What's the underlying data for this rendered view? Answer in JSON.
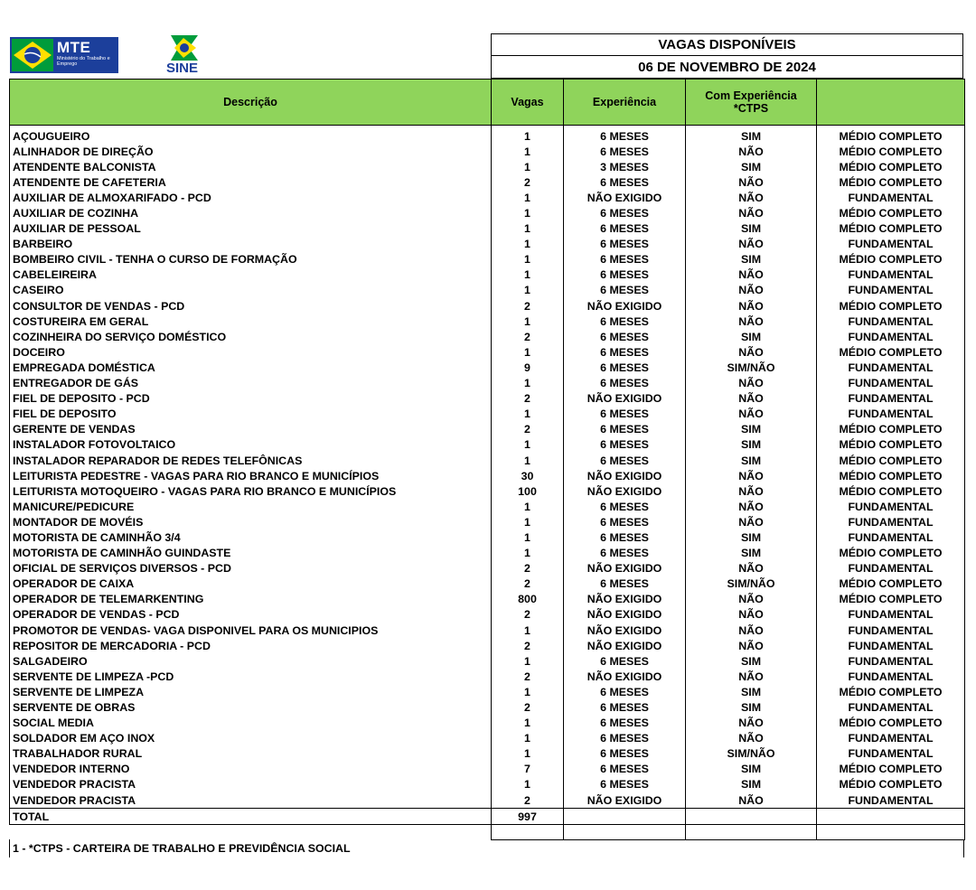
{
  "header": {
    "mte_label": "MTE",
    "mte_subtitle": "Ministério do Trabalho e Emprego",
    "sine_label": "SINE",
    "title": "VAGAS DISPONÍVEIS",
    "date": "06 DE NOVEMBRO DE 2024"
  },
  "colors": {
    "header_green": "#8fd45b",
    "sine_blue": "#1c3f9b",
    "brazil_green": "#009c3b",
    "brazil_yellow": "#ffdf00"
  },
  "columns": {
    "descricao": "Descrição",
    "vagas": "Vagas",
    "experiencia": "Experiência",
    "com_experiencia_line1": "Com Experiência",
    "com_experiencia_line2": "*CTPS",
    "escolaridade": ""
  },
  "rows": [
    [
      "AÇOUGUEIRO",
      "1",
      "6 MESES",
      "SIM",
      "MÉDIO COMPLETO"
    ],
    [
      "ALINHADOR DE DIREÇÃO",
      "1",
      "6 MESES",
      "NÃO",
      "MÉDIO COMPLETO"
    ],
    [
      "ATENDENTE BALCONISTA",
      "1",
      "3 MESES",
      "SIM",
      "MÉDIO COMPLETO"
    ],
    [
      "ATENDENTE DE CAFETERIA",
      "2",
      "6 MESES",
      "NÃO",
      "MÉDIO COMPLETO"
    ],
    [
      "AUXILIAR DE ALMOXARIFADO - PCD",
      "1",
      "NÃO EXIGIDO",
      "NÃO",
      "FUNDAMENTAL"
    ],
    [
      "AUXILIAR DE COZINHA",
      "1",
      "6 MESES",
      "NÃO",
      "MÉDIO COMPLETO"
    ],
    [
      "AUXILIAR DE PESSOAL",
      "1",
      "6 MESES",
      "SIM",
      "MÉDIO COMPLETO"
    ],
    [
      "BARBEIRO",
      "1",
      "6 MESES",
      "NÃO",
      "FUNDAMENTAL"
    ],
    [
      "BOMBEIRO CIVIL - TENHA O CURSO DE FORMAÇÃO",
      "1",
      "6 MESES",
      "SIM",
      "MÉDIO COMPLETO"
    ],
    [
      "CABELEIREIRA",
      "1",
      "6 MESES",
      "NÃO",
      "FUNDAMENTAL"
    ],
    [
      "CASEIRO",
      "1",
      "6 MESES",
      "NÃO",
      "FUNDAMENTAL"
    ],
    [
      "CONSULTOR DE VENDAS - PCD",
      "2",
      "NÃO EXIGIDO",
      "NÃO",
      "MÉDIO COMPLETO"
    ],
    [
      "COSTUREIRA EM GERAL",
      "1",
      "6 MESES",
      "NÃO",
      "FUNDAMENTAL"
    ],
    [
      "COZINHEIRA DO SERVIÇO DOMÉSTICO",
      "2",
      "6 MESES",
      "SIM",
      "FUNDAMENTAL"
    ],
    [
      "DOCEIRO",
      "1",
      "6 MESES",
      "NÃO",
      "MÉDIO COMPLETO"
    ],
    [
      "EMPREGADA DOMÉSTICA",
      "9",
      "6 MESES",
      "SIM/NÃO",
      "FUNDAMENTAL"
    ],
    [
      "ENTREGADOR DE GÁS",
      "1",
      "6 MESES",
      "NÃO",
      "FUNDAMENTAL"
    ],
    [
      "FIEL DE DEPOSITO - PCD",
      "2",
      "NÃO EXIGIDO",
      "NÃO",
      "FUNDAMENTAL"
    ],
    [
      "FIEL DE DEPOSITO",
      "1",
      "6 MESES",
      "NÃO",
      "FUNDAMENTAL"
    ],
    [
      "GERENTE DE VENDAS",
      "2",
      "6 MESES",
      "SIM",
      "MÉDIO COMPLETO"
    ],
    [
      "INSTALADOR FOTOVOLTAICO",
      "1",
      "6 MESES",
      "SIM",
      "MÉDIO COMPLETO"
    ],
    [
      "INSTALADOR REPARADOR DE REDES TELEFÔNICAS",
      "1",
      "6 MESES",
      "SIM",
      "MÉDIO COMPLETO"
    ],
    [
      "LEITURISTA  PEDESTRE - VAGAS PARA RIO BRANCO E MUNICÍPIOS",
      "30",
      "NÃO EXIGIDO",
      "NÃO",
      "MÉDIO COMPLETO"
    ],
    [
      "LEITURISTA MOTOQUEIRO - VAGAS PARA RIO BRANCO E MUNICÍPIOS",
      "100",
      "NÃO EXIGIDO",
      "NÃO",
      "MÉDIO COMPLETO"
    ],
    [
      "MANICURE/PEDICURE",
      "1",
      "6 MESES",
      "NÃO",
      "FUNDAMENTAL"
    ],
    [
      "MONTADOR DE MOVÉIS",
      "1",
      "6 MESES",
      "NÃO",
      "FUNDAMENTAL"
    ],
    [
      "MOTORISTA DE CAMINHÃO 3/4",
      "1",
      "6 MESES",
      "SIM",
      "FUNDAMENTAL"
    ],
    [
      "MOTORISTA DE CAMINHÃO GUINDASTE",
      "1",
      "6 MESES",
      "SIM",
      "MÉDIO COMPLETO"
    ],
    [
      "OFICIAL DE SERVIÇOS DIVERSOS - PCD",
      "2",
      "NÃO EXIGIDO",
      "NÃO",
      "FUNDAMENTAL"
    ],
    [
      "OPERADOR DE CAIXA",
      "2",
      "6 MESES",
      "SIM/NÃO",
      "MÉDIO COMPLETO"
    ],
    [
      "OPERADOR DE TELEMARKENTING",
      "800",
      "NÃO EXIGIDO",
      "NÃO",
      "MÉDIO COMPLETO"
    ],
    [
      "OPERADOR DE VENDAS - PCD",
      "2",
      "NÃO EXIGIDO",
      "NÃO",
      "FUNDAMENTAL"
    ],
    [
      "PROMOTOR DE VENDAS- VAGA DISPONIVEL PARA OS MUNICIPIOS",
      "1",
      "NÃO EXIGIDO",
      "NÃO",
      "FUNDAMENTAL"
    ],
    [
      "REPOSITOR DE MERCADORIA - PCD",
      "2",
      "NÃO EXIGIDO",
      "NÃO",
      "FUNDAMENTAL"
    ],
    [
      "SALGADEIRO",
      "1",
      "6 MESES",
      "SIM",
      "FUNDAMENTAL"
    ],
    [
      "SERVENTE DE LIMPEZA -PCD",
      "2",
      "NÃO EXIGIDO",
      "NÃO",
      "FUNDAMENTAL"
    ],
    [
      "SERVENTE DE LIMPEZA",
      "1",
      "6 MESES",
      "SIM",
      "MÉDIO COMPLETO"
    ],
    [
      "SERVENTE DE OBRAS",
      "2",
      "6 MESES",
      "SIM",
      "FUNDAMENTAL"
    ],
    [
      "SOCIAL MEDIA",
      "1",
      "6 MESES",
      "NÃO",
      "MÉDIO COMPLETO"
    ],
    [
      "SOLDADOR  EM AÇO INOX",
      "1",
      "6 MESES",
      "NÃO",
      "FUNDAMENTAL"
    ],
    [
      "TRABALHADOR RURAL",
      "1",
      "6 MESES",
      "SIM/NÃO",
      "FUNDAMENTAL"
    ],
    [
      "VENDEDOR INTERNO",
      "7",
      "6 MESES",
      "SIM",
      "MÉDIO COMPLETO"
    ],
    [
      "VENDEDOR PRACISTA",
      "1",
      "6 MESES",
      "SIM",
      "MÉDIO COMPLETO"
    ],
    [
      "VENDEDOR PRACISTA",
      "2",
      "NÃO EXIGIDO",
      "NÃO",
      "FUNDAMENTAL"
    ]
  ],
  "total": {
    "label": "TOTAL",
    "value": "997"
  },
  "footnote": "1 - *CTPS - CARTEIRA DE TRABALHO E PREVIDÊNCIA SOCIAL"
}
